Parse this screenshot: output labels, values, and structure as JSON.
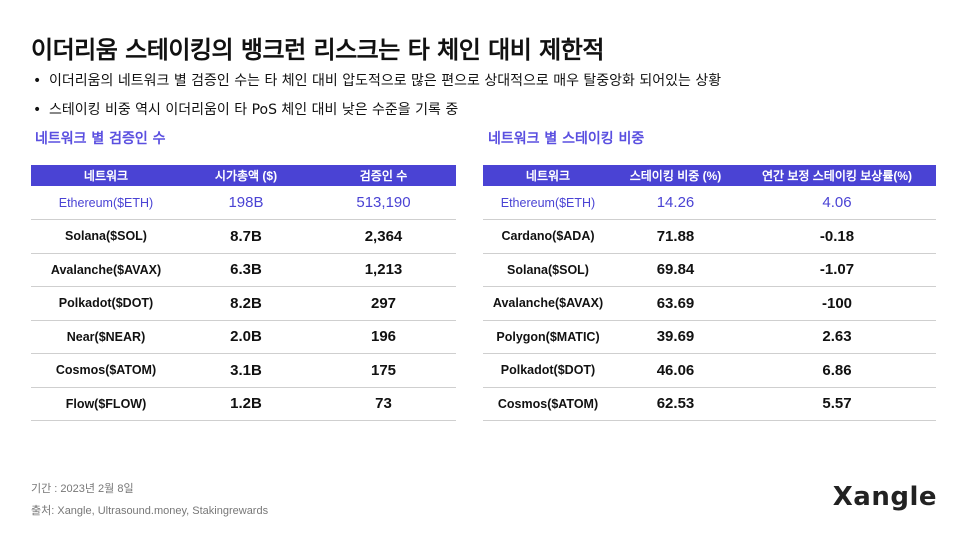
{
  "title": "이더리움 스테이킹의 뱅크런 리스크는 타 체인 대비 제한적",
  "bullets": [
    "이더리움의 네트워크 별 검증인 수는 타 체인 대비 압도적으로 많은 편으로 상대적으로 매우 탈중앙화 되어있는 상황",
    "스테이킹 비중 역시 이더리움이 타 PoS 체인 대비 낮은 수준을 기록 중"
  ],
  "bullet_symbol": "•",
  "table1": {
    "title": "네트워크 별 검증인 수",
    "headers": [
      "네트워크",
      "시가총액 ($)",
      "검증인 수"
    ],
    "rows": [
      {
        "network": "Ethereum($ETH)",
        "market_cap": "198B",
        "validators": "513,190"
      },
      {
        "network": "Solana($SOL)",
        "market_cap": "8.7B",
        "validators": "2,364"
      },
      {
        "network": "Avalanche($AVAX)",
        "market_cap": "6.3B",
        "validators": "1,213"
      },
      {
        "network": "Polkadot($DOT)",
        "market_cap": "8.2B",
        "validators": "297"
      },
      {
        "network": "Near($NEAR)",
        "market_cap": "2.0B",
        "validators": "196"
      },
      {
        "network": "Cosmos($ATOM)",
        "market_cap": "3.1B",
        "validators": "175"
      },
      {
        "network": "Flow($FLOW)",
        "market_cap": "1.2B",
        "validators": "73"
      }
    ]
  },
  "table2": {
    "title": "네트워크 별 스테이킹 비중",
    "headers": [
      "네트워크",
      "스테이킹 비중 (%)",
      "연간 보정 스테이킹 보상률(%)"
    ],
    "rows": [
      {
        "network": "Ethereum($ETH)",
        "staking_ratio": "14.26",
        "reward_rate": "4.06"
      },
      {
        "network": "Cardano($ADA)",
        "staking_ratio": "71.88",
        "reward_rate": "-0.18"
      },
      {
        "network": "Solana($SOL)",
        "staking_ratio": "69.84",
        "reward_rate": "-1.07"
      },
      {
        "network": "Avalanche($AVAX)",
        "staking_ratio": "63.69",
        "reward_rate": "-100"
      },
      {
        "network": "Polygon($MATIC)",
        "staking_ratio": "39.69",
        "reward_rate": "2.63"
      },
      {
        "network": "Polkadot($DOT)",
        "staking_ratio": "46.06",
        "reward_rate": "6.86"
      },
      {
        "network": "Cosmos($ATOM)",
        "staking_ratio": "62.53",
        "reward_rate": "5.57"
      }
    ]
  },
  "footer": {
    "period": "기간 : 2023년 2월 8일",
    "source": "출처: Xangle, Ultrasound.money, Stakingrewards"
  },
  "logo": "Xangle",
  "colors": {
    "accent": "#4a43d4",
    "section_title": "#5a4fe0",
    "header_text": "#ffffff",
    "divider": "#cfcfcf",
    "footer_text": "#777777"
  }
}
